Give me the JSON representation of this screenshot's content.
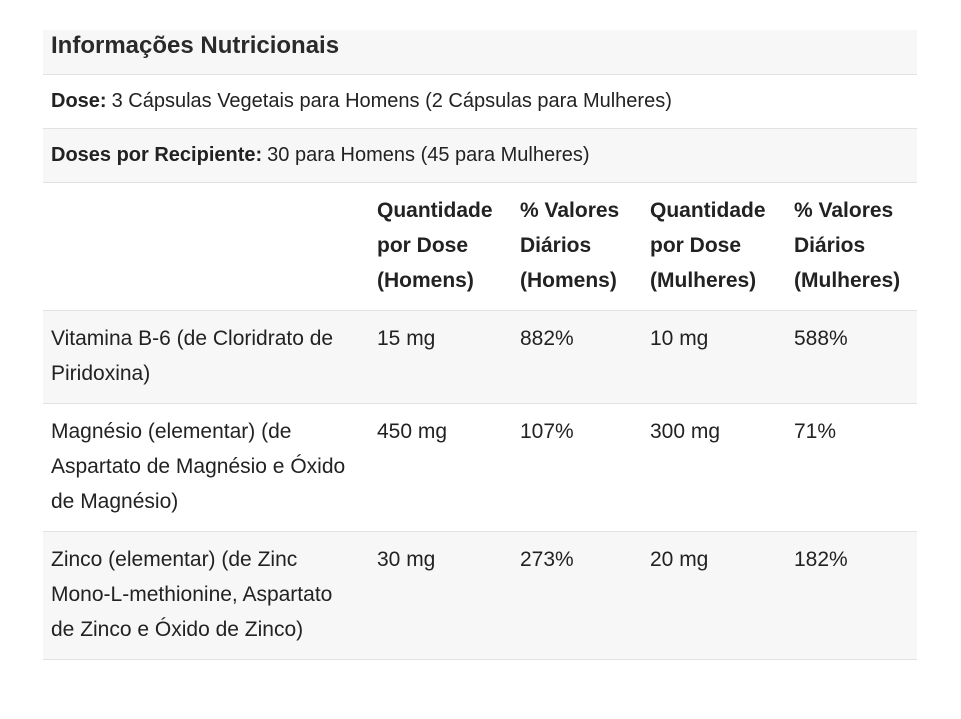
{
  "title": "Informações Nutricionais",
  "dose": {
    "label": "Dose:",
    "value": "3 Cápsulas Vegetais para Homens (2 Cápsulas para Mulheres)"
  },
  "doses_per_container": {
    "label": "Doses por Recipiente:",
    "value": "30 para Homens (45 para Mulheres)"
  },
  "table": {
    "headers": [
      "",
      "Quantidade por Dose (Homens)",
      "% Valores Diários (Homens)",
      "Quantidade por Dose (Mulheres)",
      "% Valores Diários (Mulheres)"
    ],
    "rows": [
      [
        "Vitamina B-6 (de Cloridrato de Piridoxina)",
        "15 mg",
        "882%",
        "10 mg",
        "588%"
      ],
      [
        "Magnésio (elementar) (de Aspartato de Magnésio e Óxido de Magnésio)",
        "450 mg",
        "107%",
        "300 mg",
        "71%"
      ],
      [
        "Zinco (elementar) (de Zinc Mono-L-methionine, Aspartato de Zinco e Óxido de Zinco)",
        "30 mg",
        "273%",
        "20 mg",
        "182%"
      ]
    ]
  }
}
